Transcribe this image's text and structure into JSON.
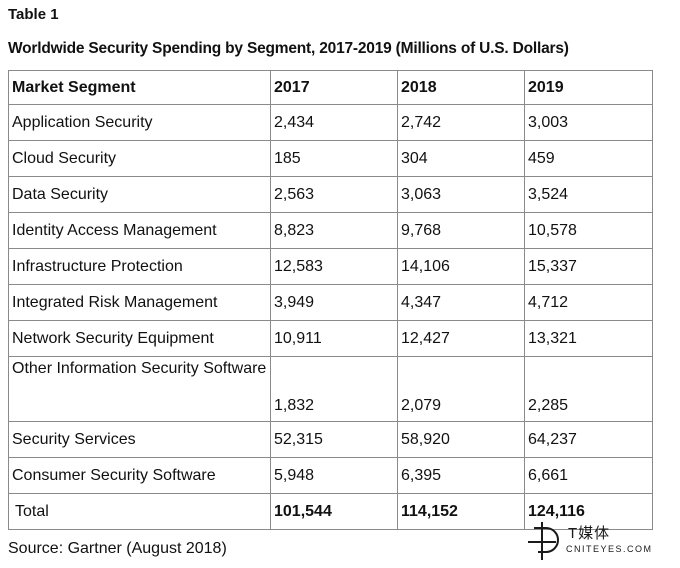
{
  "caption": "Table 1",
  "heading": "Worldwide Security Spending by Segment, 2017-2019 (Millions of U.S. Dollars)",
  "table": {
    "headers": [
      "Market Segment",
      "2017",
      "2018",
      "2019"
    ],
    "rows": [
      [
        "Application Security",
        "2,434",
        "2,742",
        "3,003"
      ],
      [
        "Cloud Security",
        "185",
        "304",
        "459"
      ],
      [
        "Data Security",
        "2,563",
        "3,063",
        "3,524"
      ],
      [
        "Identity Access Management",
        "8,823",
        "9,768",
        "10,578"
      ],
      [
        "Infrastructure Protection",
        "12,583",
        "14,106",
        "15,337"
      ],
      [
        "Integrated Risk Management",
        "3,949",
        "4,347",
        "4,712"
      ],
      [
        "Network Security Equipment",
        "10,911",
        "12,427",
        "13,321"
      ],
      [
        "Other Information Security Software",
        "1,832",
        "2,079",
        "2,285"
      ],
      [
        "Security Services",
        "52,315",
        "58,920",
        "64,237"
      ],
      [
        "Consumer Security Software",
        "5,948",
        "6,395",
        "6,661"
      ]
    ],
    "total": [
      "Total",
      "101,544",
      "114,152",
      "124,116"
    ]
  },
  "source": "Source: Gartner (August 2018)",
  "watermark": {
    "icon": "t-media-logo-icon",
    "name": "T媒体",
    "site": "CNITEYES.COM"
  }
}
